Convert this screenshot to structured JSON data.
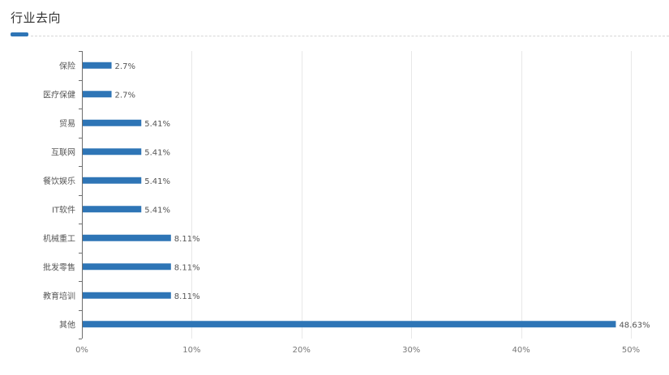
{
  "header": {
    "title": "行业去向"
  },
  "colors": {
    "bar": "#2e75b6",
    "grid": "#e8e8e8",
    "axis": "#6e6e6e"
  },
  "chart_data": {
    "type": "bar",
    "orientation": "horizontal",
    "title": "行业去向",
    "categories": [
      "保险",
      "医疗保健",
      "贸易",
      "互联网",
      "餐饮娱乐",
      "IT软件",
      "机械重工",
      "批发零售",
      "教育培训",
      "其他"
    ],
    "values": [
      2.7,
      2.7,
      5.41,
      5.41,
      5.41,
      5.41,
      8.11,
      8.11,
      8.11,
      48.63
    ],
    "value_labels": [
      "2.7%",
      "2.7%",
      "5.41%",
      "5.41%",
      "5.41%",
      "5.41%",
      "8.11%",
      "8.11%",
      "8.11%",
      "48.63%"
    ],
    "xlim": [
      0,
      50
    ],
    "x_ticks": [
      0,
      10,
      20,
      30,
      40,
      50
    ],
    "x_tick_labels": [
      "0%",
      "10%",
      "20%",
      "30%",
      "40%",
      "50%"
    ],
    "grid": true,
    "legend": "none"
  }
}
